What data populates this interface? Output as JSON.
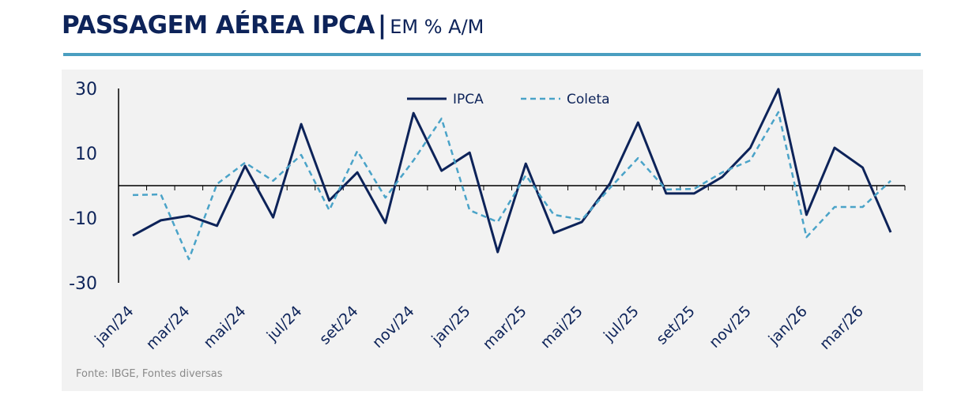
{
  "header": {
    "title": "PASSAGEM AÉREA IPCA",
    "separator": "|",
    "subtitle": "EM % A/M"
  },
  "source": "Fonte: IBGE, Fontes diversas",
  "colors": {
    "ipca": "#0d2359",
    "coleta": "#4aa3c8",
    "rule": "#4a9ec0"
  },
  "chart_data": {
    "type": "line",
    "title": "PASSAGEM AÉREA IPCA | EM % A/M",
    "ylim": [
      -30,
      30
    ],
    "yticks": [
      -30,
      -10,
      10,
      30
    ],
    "x": [
      "jan/24",
      "fev/24",
      "mar/24",
      "abr/24",
      "mai/24",
      "jun/24",
      "jul/24",
      "ago/24",
      "set/24",
      "out/24",
      "nov/24",
      "dez/24",
      "jan/25",
      "fev/25",
      "mar/25",
      "abr/25",
      "mai/25",
      "jun/25",
      "jul/25",
      "ago/25",
      "set/25",
      "out/25",
      "nov/25",
      "dez/25",
      "jan/26",
      "fev/26",
      "mar/26",
      "abr/26"
    ],
    "xtick_labels": [
      "jan/24",
      "mar/24",
      "mai/24",
      "jul/24",
      "set/24",
      "nov/24",
      "jan/25",
      "mar/25",
      "mai/25",
      "jul/25",
      "set/25",
      "nov/25",
      "jan/26",
      "mar/26"
    ],
    "legend": "top-center",
    "series": [
      {
        "name": "IPCA",
        "style": "solid",
        "values": [
          -15.4,
          -10.7,
          -9.3,
          -12.4,
          6.1,
          -9.8,
          19.0,
          -4.6,
          4.1,
          -11.5,
          22.4,
          4.6,
          10.2,
          -20.5,
          6.8,
          -14.6,
          -11.2,
          0.7,
          19.5,
          -2.4,
          -2.4,
          2.7,
          11.7,
          29.8,
          -9.0,
          11.7,
          5.6,
          -14.4
        ]
      },
      {
        "name": "Coleta",
        "style": "dashed",
        "values": [
          -2.9,
          -2.7,
          -22.7,
          0.5,
          7.1,
          1.5,
          9.5,
          -7.6,
          10.7,
          -3.7,
          7.8,
          20.7,
          -7.6,
          -11.2,
          3.2,
          -9.0,
          -10.5,
          -0.7,
          8.5,
          -1.2,
          -1.0,
          4.1,
          7.8,
          22.7,
          -15.9,
          -6.6,
          -6.6,
          1.5
        ]
      }
    ]
  }
}
